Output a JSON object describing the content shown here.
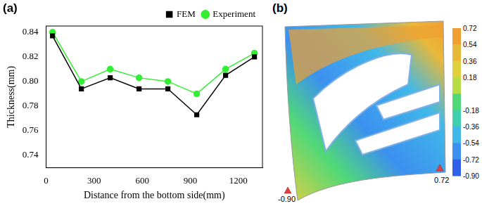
{
  "chart_data": {
    "type": "line",
    "panel_label": "(a)",
    "x_label": "Distance from the bottom side(mm)",
    "y_label": "Thickness(mm)",
    "x": [
      40,
      220,
      400,
      580,
      760,
      940,
      1120,
      1300
    ],
    "series": [
      {
        "name": "FEM",
        "color": "#000000",
        "marker": "square",
        "values": [
          0.837,
          0.794,
          0.803,
          0.794,
          0.794,
          0.773,
          0.805,
          0.82
        ]
      },
      {
        "name": "Experiment",
        "color": "#33ee33",
        "marker": "circle",
        "values": [
          0.84,
          0.8,
          0.81,
          0.803,
          0.8,
          0.79,
          0.81,
          0.823
        ]
      }
    ],
    "xlim": [
      0,
      1350
    ],
    "xticks": [
      0,
      300,
      600,
      900,
      1200
    ],
    "ylim": [
      0.73,
      0.845
    ],
    "yticks": [
      0.74,
      0.76,
      0.78,
      {
        "value": 0.8,
        "label": "0.80"
      },
      0.82,
      0.84
    ],
    "grid": false,
    "legend": "top"
  },
  "contour_map": {
    "panel_label": "(b)",
    "colorbar": {
      "range": [
        -0.9,
        0.72
      ],
      "ticks": [
        0.72,
        0.54,
        0.36,
        0.18,
        -0.18,
        -0.36,
        -0.54,
        -0.72,
        {
          "value": -0.9,
          "label": "-0.90"
        }
      ]
    },
    "annotations": [
      {
        "text": "-0.90",
        "value": -0.9
      },
      {
        "text": "0.72",
        "value": 0.72
      }
    ]
  }
}
